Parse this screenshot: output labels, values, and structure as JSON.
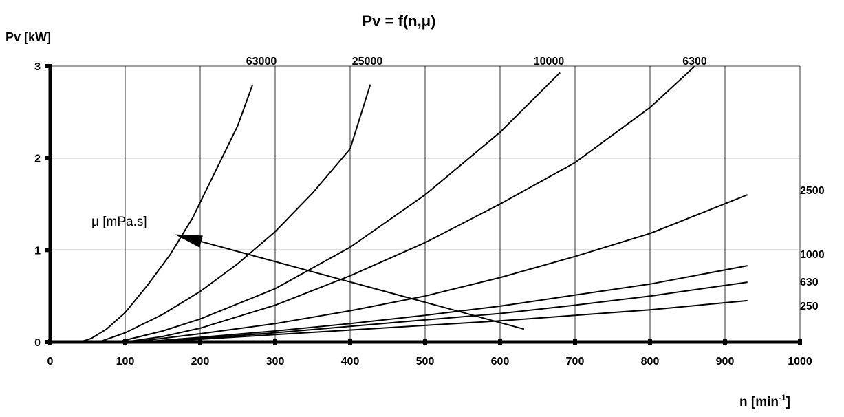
{
  "chart_data": {
    "type": "line",
    "title": "Pv = f(n,μ)",
    "ylabel": "Pv [kW]",
    "xlabel": {
      "base": "n [min",
      "sup": "-1",
      "tail": "]"
    },
    "xlim": [
      0,
      1000
    ],
    "ylim": [
      0,
      3
    ],
    "xticks": [
      "0",
      "100",
      "200",
      "300",
      "400",
      "500",
      "600",
      "700",
      "800",
      "900",
      "1000"
    ],
    "yticks": [
      "0",
      "1",
      "2",
      "3"
    ],
    "grid": true,
    "annotation": {
      "text": "μ [mPa.s]",
      "arrow_from": [
        632,
        0.14
      ],
      "arrow_to": [
        166,
        1.17
      ]
    },
    "series": [
      {
        "name": "63000",
        "points": [
          [
            40,
            0
          ],
          [
            55,
            0.04
          ],
          [
            75,
            0.14
          ],
          [
            100,
            0.32
          ],
          [
            130,
            0.62
          ],
          [
            160,
            0.95
          ],
          [
            190,
            1.35
          ],
          [
            220,
            1.85
          ],
          [
            250,
            2.35
          ],
          [
            270,
            2.8
          ]
        ]
      },
      {
        "name": "25000",
        "points": [
          [
            65,
            0
          ],
          [
            100,
            0.1
          ],
          [
            150,
            0.3
          ],
          [
            200,
            0.55
          ],
          [
            250,
            0.85
          ],
          [
            300,
            1.2
          ],
          [
            350,
            1.62
          ],
          [
            400,
            2.1
          ],
          [
            427,
            2.8
          ]
        ]
      },
      {
        "name": "10000",
        "points": [
          [
            90,
            0
          ],
          [
            150,
            0.12
          ],
          [
            200,
            0.25
          ],
          [
            300,
            0.58
          ],
          [
            400,
            1.03
          ],
          [
            500,
            1.6
          ],
          [
            600,
            2.28
          ],
          [
            680,
            2.93
          ]
        ]
      },
      {
        "name": "6300",
        "points": [
          [
            100,
            0
          ],
          [
            150,
            0.06
          ],
          [
            200,
            0.15
          ],
          [
            300,
            0.4
          ],
          [
            400,
            0.72
          ],
          [
            500,
            1.08
          ],
          [
            600,
            1.5
          ],
          [
            700,
            1.95
          ],
          [
            800,
            2.55
          ],
          [
            860,
            3.0
          ]
        ]
      },
      {
        "name": "2500",
        "points": [
          [
            110,
            0
          ],
          [
            200,
            0.09
          ],
          [
            300,
            0.2
          ],
          [
            400,
            0.34
          ],
          [
            500,
            0.5
          ],
          [
            600,
            0.7
          ],
          [
            700,
            0.93
          ],
          [
            800,
            1.18
          ],
          [
            930,
            1.6
          ]
        ]
      },
      {
        "name": "1000",
        "points": [
          [
            120,
            0
          ],
          [
            200,
            0.05
          ],
          [
            300,
            0.12
          ],
          [
            400,
            0.2
          ],
          [
            500,
            0.29
          ],
          [
            600,
            0.39
          ],
          [
            700,
            0.51
          ],
          [
            800,
            0.63
          ],
          [
            930,
            0.83
          ]
        ]
      },
      {
        "name": "630",
        "points": [
          [
            120,
            0
          ],
          [
            200,
            0.04
          ],
          [
            300,
            0.1
          ],
          [
            400,
            0.17
          ],
          [
            500,
            0.24
          ],
          [
            600,
            0.31
          ],
          [
            700,
            0.4
          ],
          [
            800,
            0.5
          ],
          [
            930,
            0.65
          ]
        ]
      },
      {
        "name": "250",
        "points": [
          [
            120,
            0
          ],
          [
            200,
            0.03
          ],
          [
            300,
            0.08
          ],
          [
            400,
            0.13
          ],
          [
            500,
            0.18
          ],
          [
            600,
            0.23
          ],
          [
            700,
            0.29
          ],
          [
            800,
            0.35
          ],
          [
            930,
            0.45
          ]
        ]
      }
    ]
  }
}
